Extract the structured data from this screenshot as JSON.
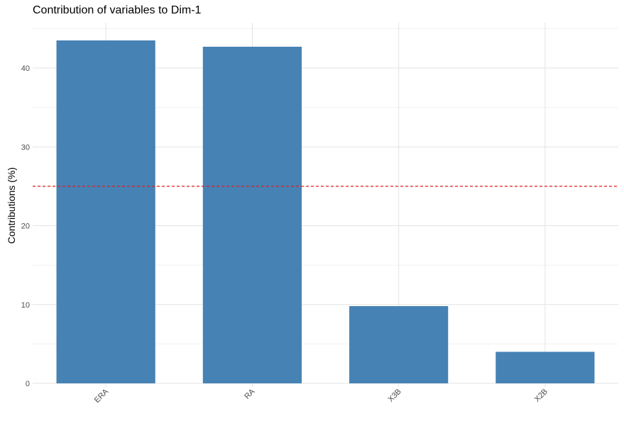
{
  "chart_data": {
    "type": "bar",
    "title": "Contribution of variables to Dim-1",
    "xlabel": "",
    "ylabel": "Contributions (%)",
    "categories": [
      "ERA",
      "RA",
      "X3B",
      "X2B"
    ],
    "values": [
      43.5,
      42.7,
      9.8,
      4.0
    ],
    "ylim": [
      0,
      45
    ],
    "yticks": [
      0,
      10,
      20,
      30,
      40
    ],
    "reference_line": {
      "value": 25,
      "color": "#E41A1C",
      "style": "dashed"
    },
    "bar_color": "#4682B4",
    "grid": true,
    "legend": "none"
  }
}
